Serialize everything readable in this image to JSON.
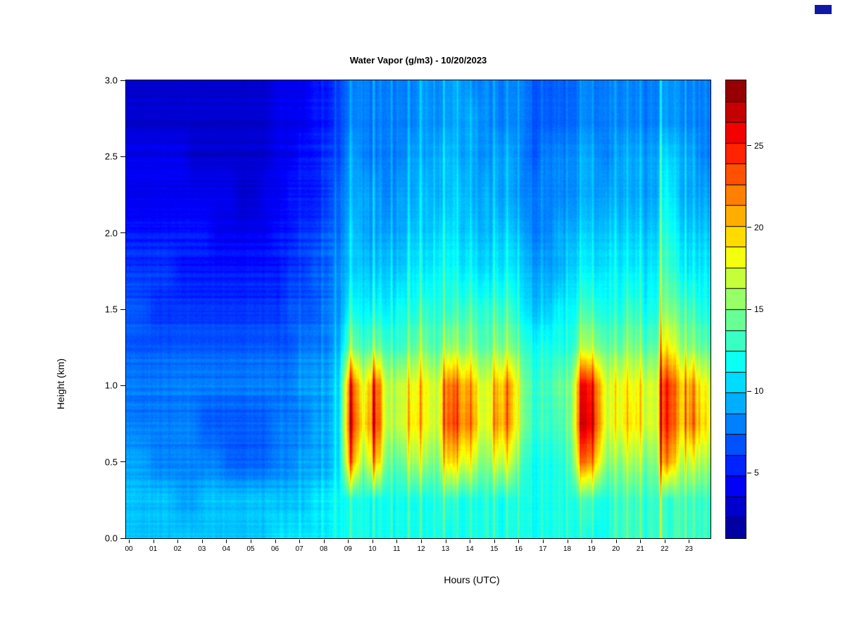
{
  "colorbar": {
    "tick_values": [
      5,
      10,
      15,
      20,
      25
    ],
    "segments": 22
  },
  "axes": {
    "x_ticks": [
      "00",
      "01",
      "02",
      "03",
      "04",
      "05",
      "06",
      "07",
      "08",
      "09",
      "10",
      "11",
      "12",
      "13",
      "14",
      "15",
      "16",
      "17",
      "18",
      "19",
      "20",
      "21",
      "22",
      "23"
    ],
    "y_ticks": [
      "0.0",
      "0.5",
      "1.0",
      "1.5",
      "2.0",
      "2.5",
      "3.0"
    ],
    "y_max_km": 3.0,
    "x_hours_span": 24
  },
  "chart_data": {
    "type": "heatmap",
    "title": "Water Vapor (g/m3) - 10/20/2023",
    "xlabel": "Hours (UTC)",
    "ylabel": "Height (km)",
    "units": "g/m3",
    "vmin": 1,
    "vmax": 29,
    "colormap": "jet",
    "colormap_stops": [
      [
        0,
        0,
        0,
        143
      ],
      [
        0.125,
        0,
        0,
        255
      ],
      [
        0.375,
        0,
        255,
        255
      ],
      [
        0.625,
        255,
        255,
        0
      ],
      [
        0.875,
        255,
        0,
        0
      ],
      [
        1,
        128,
        0,
        0
      ]
    ],
    "x_hours": [
      0,
      0.5,
      1,
      1.5,
      2,
      2.5,
      3,
      3.5,
      4,
      4.5,
      5,
      5.5,
      6,
      6.5,
      7,
      7.5,
      8,
      8.5,
      9,
      9.5,
      10,
      10.5,
      11,
      11.5,
      12,
      12.5,
      13,
      13.5,
      14,
      14.5,
      15,
      15.5,
      16,
      16.5,
      17,
      17.5,
      18,
      18.5,
      19,
      19.5,
      20,
      20.5,
      21,
      21.5,
      22,
      22.5,
      23,
      23.5
    ],
    "heights_km": [
      0,
      0.25,
      0.5,
      0.75,
      1,
      1.25,
      1.5,
      1.75,
      2,
      2.25,
      2.5,
      2.75,
      3
    ],
    "values_g_m3": [
      [
        10,
        10,
        9,
        8,
        8,
        7,
        7,
        6,
        5,
        4,
        4,
        3,
        3
      ],
      [
        10,
        10,
        9,
        8,
        8,
        7,
        7,
        6,
        5,
        4,
        4,
        3,
        3
      ],
      [
        10,
        10,
        8,
        8,
        8,
        7,
        6,
        6,
        5,
        4,
        4,
        3,
        3
      ],
      [
        10,
        10,
        8,
        8,
        8,
        7,
        6,
        6,
        5,
        4,
        4,
        3,
        3
      ],
      [
        10,
        9,
        8,
        8,
        8,
        7,
        6,
        5,
        5,
        4,
        4,
        3,
        3
      ],
      [
        10,
        9,
        8,
        8,
        8,
        7,
        6,
        5,
        5,
        4,
        3,
        3,
        3
      ],
      [
        10,
        10,
        8,
        7,
        8,
        7,
        6,
        5,
        5,
        4,
        3,
        3,
        3
      ],
      [
        10,
        10,
        8,
        7,
        8,
        7,
        6,
        5,
        4,
        4,
        3,
        3,
        3
      ],
      [
        10,
        10,
        7,
        7,
        8,
        7,
        6,
        5,
        4,
        4,
        3,
        3,
        3
      ],
      [
        10,
        10,
        7,
        7,
        8,
        7,
        6,
        5,
        4,
        3,
        3,
        3,
        3
      ],
      [
        10,
        10,
        7,
        7,
        8,
        7,
        6,
        5,
        4,
        3,
        3,
        3,
        3
      ],
      [
        10,
        10,
        7,
        7,
        8,
        7,
        6,
        5,
        4,
        4,
        3,
        3,
        3
      ],
      [
        11,
        10,
        8,
        8,
        8,
        7,
        6,
        5,
        5,
        4,
        4,
        4,
        4
      ],
      [
        11,
        10,
        8,
        8,
        8,
        7,
        7,
        6,
        5,
        5,
        4,
        4,
        4
      ],
      [
        11,
        10,
        9,
        8,
        9,
        8,
        7,
        6,
        6,
        5,
        5,
        4,
        4
      ],
      [
        11,
        11,
        9,
        9,
        9,
        8,
        7,
        7,
        6,
        5,
        5,
        5,
        5
      ],
      [
        11,
        11,
        9,
        9,
        9,
        8,
        8,
        7,
        7,
        6,
        6,
        5,
        5
      ],
      [
        11,
        11,
        10,
        10,
        10,
        9,
        8,
        8,
        7,
        7,
        6,
        6,
        6
      ],
      [
        12,
        12,
        22,
        25,
        24,
        15,
        12,
        10,
        10,
        9,
        9,
        8,
        8
      ],
      [
        12,
        12,
        15,
        18,
        17,
        13,
        11,
        10,
        9,
        9,
        8,
        8,
        8
      ],
      [
        12,
        12,
        21,
        25,
        24,
        15,
        12,
        10,
        9,
        9,
        8,
        8,
        8
      ],
      [
        12,
        12,
        14,
        16,
        16,
        13,
        11,
        10,
        9,
        8,
        8,
        8,
        8
      ],
      [
        12,
        12,
        14,
        17,
        17,
        13,
        12,
        10,
        9,
        9,
        8,
        8,
        8
      ],
      [
        12,
        12,
        16,
        19,
        18,
        14,
        12,
        11,
        10,
        9,
        9,
        8,
        8
      ],
      [
        12,
        12,
        16,
        19,
        19,
        15,
        13,
        11,
        10,
        10,
        9,
        9,
        9
      ],
      [
        12,
        12,
        14,
        16,
        16,
        13,
        12,
        11,
        10,
        9,
        9,
        8,
        8
      ],
      [
        12,
        13,
        20,
        24,
        23,
        16,
        13,
        12,
        11,
        10,
        10,
        9,
        9
      ],
      [
        12,
        12,
        18,
        22,
        21,
        15,
        13,
        11,
        10,
        10,
        9,
        9,
        9
      ],
      [
        12,
        12,
        17,
        21,
        20,
        15,
        13,
        11,
        10,
        9,
        9,
        9,
        8
      ],
      [
        12,
        12,
        14,
        16,
        16,
        13,
        12,
        10,
        9,
        9,
        8,
        8,
        8
      ],
      [
        12,
        12,
        17,
        21,
        20,
        15,
        13,
        11,
        10,
        9,
        9,
        8,
        8
      ],
      [
        12,
        12,
        17,
        21,
        21,
        15,
        13,
        11,
        10,
        9,
        9,
        8,
        8
      ],
      [
        12,
        12,
        13,
        15,
        15,
        13,
        11,
        10,
        9,
        8,
        8,
        8,
        8
      ],
      [
        12,
        12,
        12,
        13,
        13,
        12,
        10,
        9,
        8,
        8,
        7,
        7,
        7
      ],
      [
        12,
        12,
        12,
        13,
        13,
        12,
        10,
        9,
        8,
        8,
        8,
        7,
        7
      ],
      [
        12,
        12,
        12,
        13,
        14,
        12,
        11,
        9,
        9,
        8,
        8,
        7,
        7
      ],
      [
        12,
        12,
        13,
        14,
        14,
        12,
        11,
        10,
        9,
        8,
        8,
        7,
        7
      ],
      [
        12,
        13,
        22,
        26,
        25,
        16,
        13,
        11,
        10,
        9,
        9,
        8,
        8
      ],
      [
        12,
        13,
        21,
        25,
        24,
        16,
        13,
        11,
        10,
        9,
        9,
        8,
        8
      ],
      [
        12,
        12,
        15,
        17,
        17,
        14,
        12,
        11,
        10,
        9,
        8,
        8,
        8
      ],
      [
        13,
        13,
        15,
        18,
        18,
        14,
        12,
        11,
        10,
        9,
        9,
        8,
        8
      ],
      [
        13,
        13,
        16,
        19,
        18,
        15,
        13,
        11,
        10,
        9,
        9,
        8,
        8
      ],
      [
        13,
        13,
        15,
        18,
        18,
        14,
        12,
        11,
        10,
        9,
        9,
        8,
        8
      ],
      [
        13,
        13,
        15,
        17,
        17,
        14,
        12,
        11,
        10,
        9,
        9,
        8,
        8
      ],
      [
        13,
        13,
        23,
        26,
        26,
        20,
        16,
        14,
        13,
        12,
        11,
        9,
        9
      ],
      [
        13,
        13,
        16,
        19,
        19,
        15,
        13,
        11,
        10,
        9,
        9,
        8,
        8
      ],
      [
        13,
        13,
        17,
        22,
        21,
        15,
        13,
        11,
        10,
        9,
        9,
        8,
        8
      ],
      [
        13,
        13,
        16,
        19,
        18,
        14,
        12,
        11,
        10,
        9,
        8,
        8,
        8
      ]
    ],
    "streaks": [
      {
        "hour": 7.1,
        "strength": 0.1
      },
      {
        "hour": 8.05,
        "strength": 0.12
      },
      {
        "hour": 8.6,
        "strength": 0.22
      },
      {
        "hour": 9.2,
        "strength": 0.18
      },
      {
        "hour": 10.15,
        "strength": 0.2
      },
      {
        "hour": 10.9,
        "strength": 0.15
      },
      {
        "hour": 11.6,
        "strength": 0.18
      },
      {
        "hour": 12.1,
        "strength": 0.22
      },
      {
        "hour": 12.65,
        "strength": 0.15
      },
      {
        "hour": 13.05,
        "strength": 0.25
      },
      {
        "hour": 13.6,
        "strength": 0.15
      },
      {
        "hour": 14.15,
        "strength": 0.18
      },
      {
        "hour": 15.1,
        "strength": 0.18
      },
      {
        "hour": 15.65,
        "strength": 0.15
      },
      {
        "hour": 16.1,
        "strength": 0.18
      },
      {
        "hour": 17.05,
        "strength": 0.14
      },
      {
        "hour": 18.1,
        "strength": 0.12
      },
      {
        "hour": 18.65,
        "strength": 0.2
      },
      {
        "hour": 19.15,
        "strength": 0.18
      },
      {
        "hour": 20.1,
        "strength": 0.16
      },
      {
        "hour": 20.6,
        "strength": 0.14
      },
      {
        "hour": 21.1,
        "strength": 0.16
      },
      {
        "hour": 21.95,
        "strength": 0.5
      },
      {
        "hour": 22.55,
        "strength": 0.15
      },
      {
        "hour": 22.95,
        "strength": 0.18
      },
      {
        "hour": 23.3,
        "strength": 0.14
      }
    ]
  }
}
